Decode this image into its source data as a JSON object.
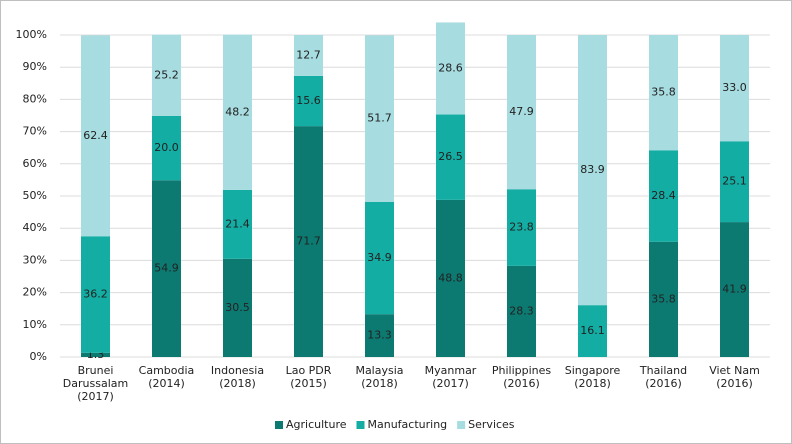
{
  "chart_data": {
    "type": "stacked_bar_percent",
    "categories": [
      "Brunei\nDarussalam\n(2017)",
      "Cambodia\n(2014)",
      "Indonesia\n(2018)",
      "Lao PDR\n(2015)",
      "Malaysia\n(2018)",
      "Myanmar\n(2017)",
      "Philippines\n(2016)",
      "Singapore\n(2018)",
      "Thailand\n(2016)",
      "Viet Nam\n(2016)"
    ],
    "series": [
      {
        "name": "Agriculture",
        "color": "#0d7a72",
        "values": [
          1.3,
          54.9,
          30.5,
          71.7,
          13.3,
          48.8,
          28.3,
          0,
          35.8,
          41.9
        ],
        "value_labels": [
          "1.3",
          "54.9",
          "30.5",
          "71.7",
          "13.3",
          "48.8",
          "28.3",
          null,
          "35.8",
          "41.9"
        ]
      },
      {
        "name": "Manufacturing",
        "color": "#13ada3",
        "values": [
          36.2,
          20.0,
          21.4,
          15.6,
          34.9,
          26.5,
          23.8,
          16.1,
          28.4,
          25.1
        ],
        "value_labels": [
          "36.2",
          "20.0",
          "21.4",
          "15.6",
          "34.9",
          "26.5",
          "23.8",
          "16.1",
          "28.4",
          "25.1"
        ]
      },
      {
        "name": "Services",
        "color": "#a7dce0",
        "values": [
          62.4,
          25.2,
          48.2,
          12.7,
          51.7,
          28.6,
          47.9,
          83.9,
          35.8,
          33.0
        ],
        "value_labels": [
          "62.4",
          "25.2",
          "48.2",
          "12.7",
          "51.7",
          "28.6",
          "47.9",
          "83.9",
          "35.8",
          "33.0"
        ]
      }
    ],
    "ylim": [
      0,
      100
    ],
    "yticks": [
      {
        "value": 0,
        "label": "0%"
      },
      {
        "value": 10,
        "label": "10%"
      },
      {
        "value": 20,
        "label": "20%"
      },
      {
        "value": 30,
        "label": "30%"
      },
      {
        "value": 40,
        "label": "40%"
      },
      {
        "value": 50,
        "label": "50%"
      },
      {
        "value": 60,
        "label": "60%"
      },
      {
        "value": 70,
        "label": "70%"
      },
      {
        "value": 80,
        "label": "80%"
      },
      {
        "value": 90,
        "label": "90%"
      },
      {
        "value": 100,
        "label": "100%"
      }
    ],
    "grid": true,
    "legend": "bottom"
  }
}
